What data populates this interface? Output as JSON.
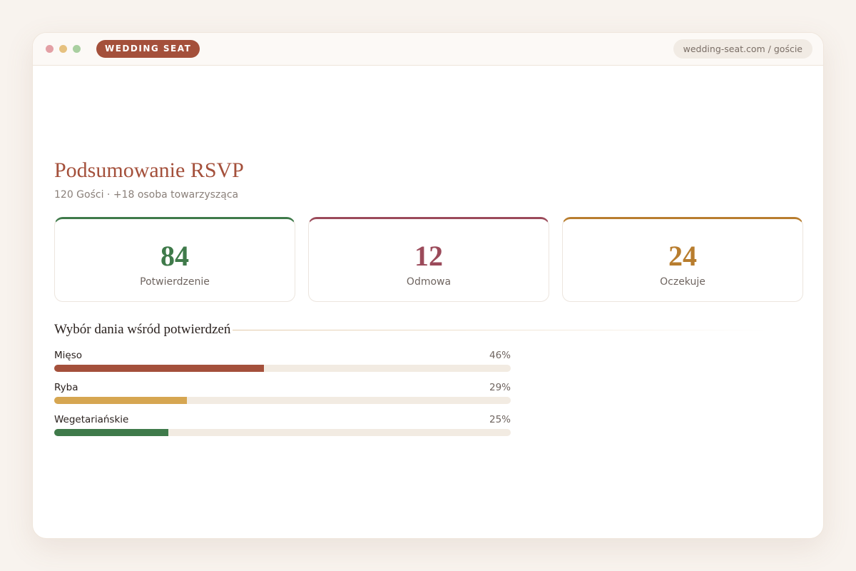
{
  "browser": {
    "brand": "WEDDING SEAT",
    "url": "wedding-seat.com / goście"
  },
  "header": {
    "title": "Podsumowanie RSVP",
    "subtitle": "120 Gości · +18 osoba towarzysząca"
  },
  "stats": [
    {
      "value": 84,
      "label": "Potwierdzenie",
      "color": "#3f7a4a"
    },
    {
      "value": 12,
      "label": "Odmowa",
      "color": "#9b4a5a"
    },
    {
      "value": 24,
      "label": "Oczekuje",
      "color": "#b87d2e"
    }
  ],
  "chart_data": {
    "type": "bar",
    "orientation": "horizontal",
    "title": "Wybór dania wśród potwierdzeń",
    "categories": [
      "Mięso",
      "Ryba",
      "Wegetariańskie"
    ],
    "values": [
      46,
      29,
      25
    ],
    "value_labels": [
      "46%",
      "29%",
      "25%"
    ],
    "colors": [
      "#a4503b",
      "#d6a651",
      "#3f7a4a"
    ],
    "xlim": [
      0,
      100
    ]
  }
}
